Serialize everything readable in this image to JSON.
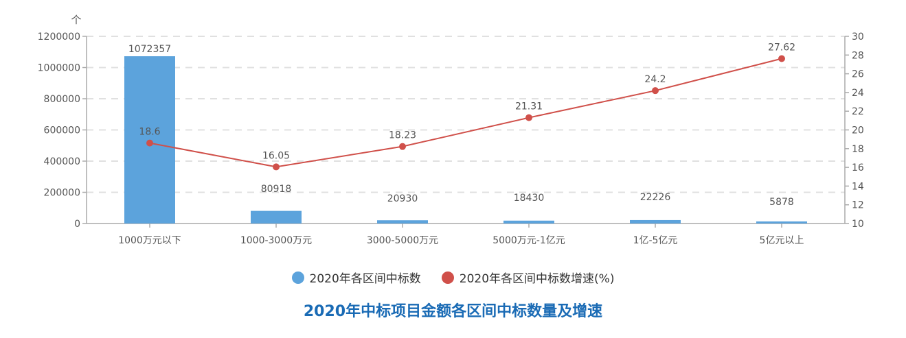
{
  "chart_data": {
    "type": "bar",
    "title": "2020年中标项目金额各区间中标数量及增速",
    "y_unit_label": "个",
    "categories": [
      "1000万元以下",
      "1000-3000万元",
      "3000-5000万元",
      "5000万元-1亿元",
      "1亿-5亿元",
      "5亿元以上"
    ],
    "series": [
      {
        "name": "2020年各区间中标数",
        "type": "bar",
        "axis": "left",
        "color": "#5ca3dc",
        "values": [
          1072357,
          80918,
          20930,
          18430,
          22226,
          5878
        ],
        "labels": [
          "1072357",
          "80918",
          "20930",
          "18430",
          "22226",
          "5878"
        ]
      },
      {
        "name": "2020年各区间中标数增速(%)",
        "type": "line",
        "axis": "right",
        "color": "#d0504a",
        "values": [
          18.6,
          16.05,
          18.23,
          21.31,
          24.2,
          27.62
        ],
        "labels": [
          "18.6",
          "16.05",
          "18.23",
          "21.31",
          "24.2",
          "27.62"
        ]
      }
    ],
    "y_left": {
      "lim": [
        0,
        1200000
      ],
      "ticks": [
        0,
        200000,
        400000,
        600000,
        800000,
        1000000,
        1200000
      ],
      "tick_labels": [
        "0",
        "200000",
        "400000",
        "600000",
        "800000",
        "1000000",
        "1200000"
      ]
    },
    "y_right": {
      "lim": [
        10,
        30
      ],
      "ticks": [
        10,
        12,
        14,
        16,
        18,
        20,
        22,
        24,
        26,
        28,
        30
      ],
      "tick_labels": [
        "10",
        "12",
        "14",
        "16",
        "18",
        "20",
        "22",
        "24",
        "26",
        "28",
        "30"
      ]
    },
    "grid": true,
    "legend_position": "bottom-center",
    "label_color": "#555555",
    "axis_color": "#aaaaaa",
    "grid_color": "#e0e0e0",
    "title_color": "#1a6bb5"
  }
}
